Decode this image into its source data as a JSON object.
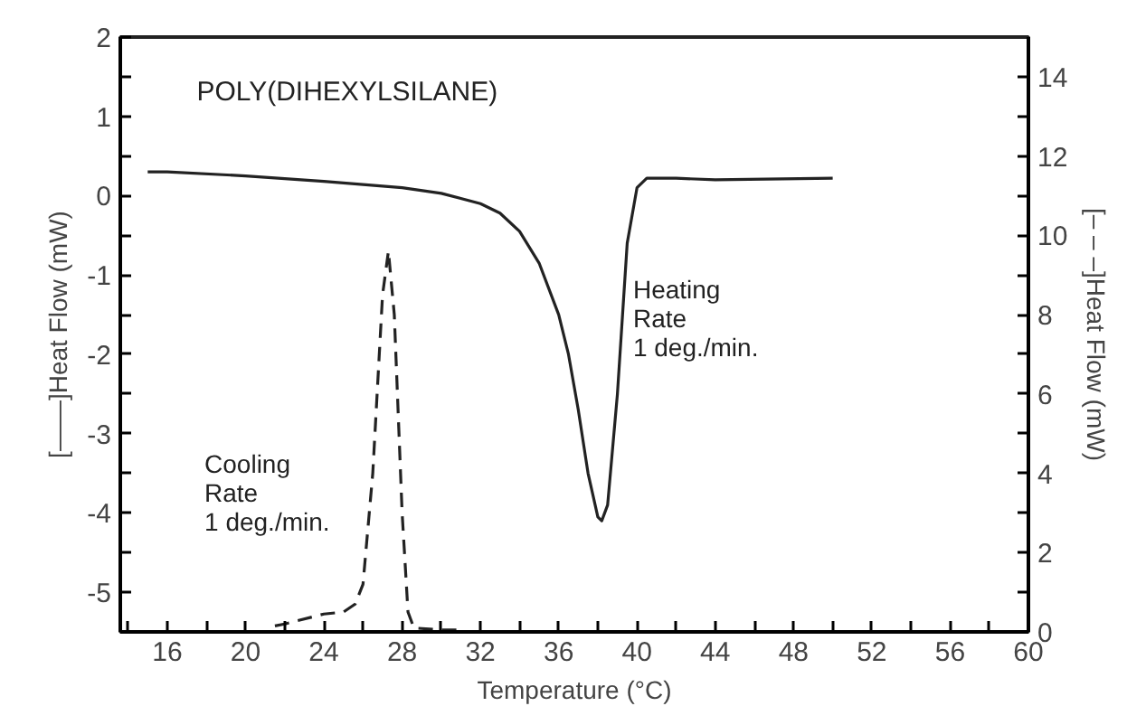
{
  "chart_data": {
    "type": "line",
    "title": "POLY(DIHEXYLSILANE)",
    "xlabel": "Temperature (°C)",
    "ylabel": "[——]Heat Flow (mW)",
    "y2label": "[– – –]Heat Flow (mW)",
    "xlim": [
      13.6,
      60
    ],
    "ylim": [
      -5.5,
      2
    ],
    "y2lim": [
      0,
      15
    ],
    "xticks": [
      {
        "value": 14,
        "label": null
      },
      16,
      {
        "value": 18,
        "label": null
      },
      20,
      {
        "value": 22,
        "label": null
      },
      24,
      {
        "value": 26,
        "label": null
      },
      28,
      {
        "value": 30,
        "label": null
      },
      32,
      {
        "value": 34,
        "label": null
      },
      36,
      {
        "value": 38,
        "label": null
      },
      40,
      {
        "value": 42,
        "label": null
      },
      44,
      {
        "value": 46,
        "label": null
      },
      48,
      {
        "value": 50,
        "label": null
      },
      52,
      {
        "value": 54,
        "label": null
      },
      56,
      {
        "value": 58,
        "label": null
      },
      60
    ],
    "yticks": [
      -5,
      {
        "value": -4.5,
        "label": null
      },
      -4,
      {
        "value": -3.5,
        "label": null
      },
      -3,
      {
        "value": -2.5,
        "label": null
      },
      -2,
      {
        "value": -1.5,
        "label": null
      },
      -1,
      {
        "value": -0.5,
        "label": null
      },
      0,
      {
        "value": 0.5,
        "label": null
      },
      1,
      {
        "value": 1.5,
        "label": null
      },
      2
    ],
    "y2ticks": [
      0,
      {
        "value": 1,
        "label": null
      },
      2,
      {
        "value": 3,
        "label": null
      },
      4,
      {
        "value": 5,
        "label": null
      },
      6,
      {
        "value": 7,
        "label": null
      },
      8,
      {
        "value": 9,
        "label": null
      },
      10,
      {
        "value": 11,
        "label": null
      },
      12,
      {
        "value": 13,
        "label": null
      },
      14
    ],
    "grid": false,
    "series": [
      {
        "color": "#222222",
        "line_style": "solid",
        "x": [
          15,
          16,
          20,
          24,
          28,
          30,
          32,
          33,
          34,
          35,
          36,
          36.5,
          37,
          37.5,
          38,
          38.2,
          38.5,
          39,
          39.5,
          40,
          40.5,
          42,
          44,
          50
        ],
        "values": [
          0.3,
          0.3,
          0.25,
          0.18,
          0.1,
          0.03,
          -0.1,
          -0.22,
          -0.45,
          -0.85,
          -1.5,
          -2,
          -2.7,
          -3.5,
          -4.05,
          -4.1,
          -3.9,
          -2.5,
          -0.6,
          0.1,
          0.22,
          0.22,
          0.2,
          0.22
        ]
      },
      {
        "color": "#222222",
        "line_style": "dashed",
        "axis": "y2",
        "x": [
          21.5,
          22,
          24,
          25,
          25.6,
          26,
          26.5,
          27,
          27.3,
          27.6,
          28,
          28.3,
          28.6,
          30,
          31
        ],
        "values": [
          0.15,
          0.2,
          0.45,
          0.5,
          0.7,
          1.2,
          4,
          8.5,
          9.6,
          8,
          3,
          0.5,
          0.1,
          0.05,
          0.05
        ]
      }
    ],
    "annotations": [
      "Cooling\nRate\n1 deg./min.",
      "Heating\nRate\n1 deg./min."
    ]
  }
}
